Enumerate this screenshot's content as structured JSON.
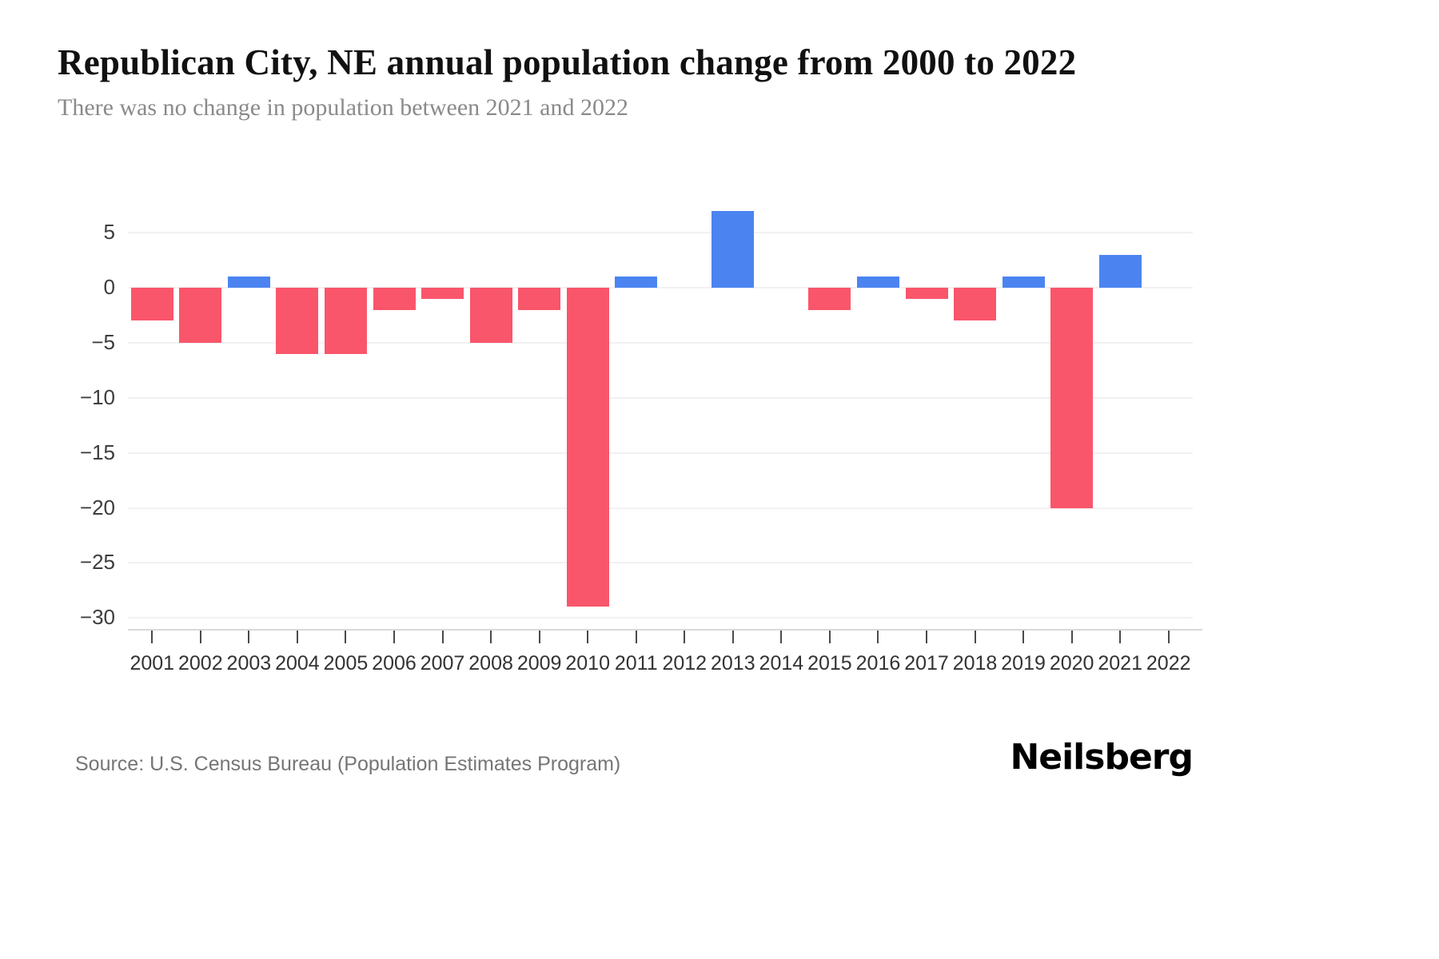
{
  "page": {
    "title": "Republican City, NE annual population change from 2000 to 2022",
    "subtitle": "There was no change in population between 2021 and 2022",
    "source": "Source: U.S. Census Bureau (Population Estimates Program)",
    "brand": "Neilsberg"
  },
  "chart_data": {
    "type": "bar",
    "title": "Republican City, NE annual population change from 2000 to 2022",
    "subtitle": "There was no change in population between 2021 and 2022",
    "categories": [
      "2001",
      "2002",
      "2003",
      "2004",
      "2005",
      "2006",
      "2007",
      "2008",
      "2009",
      "2010",
      "2011",
      "2012",
      "2013",
      "2014",
      "2015",
      "2016",
      "2017",
      "2018",
      "2019",
      "2020",
      "2021",
      "2022"
    ],
    "values": [
      -3,
      -5,
      1,
      -6,
      -6,
      -2,
      -1,
      -5,
      -2,
      -29,
      1,
      0,
      7,
      0,
      -2,
      1,
      -1,
      -3,
      1,
      -20,
      3,
      0
    ],
    "xlabel": "",
    "ylabel": "",
    "ylim": [
      -31,
      8
    ],
    "yticks": [
      5,
      0,
      -5,
      -10,
      -15,
      -20,
      -25,
      -30
    ],
    "grid": true,
    "legend": false,
    "positive_color": "#4b84f1",
    "negative_color": "#f9566b"
  }
}
